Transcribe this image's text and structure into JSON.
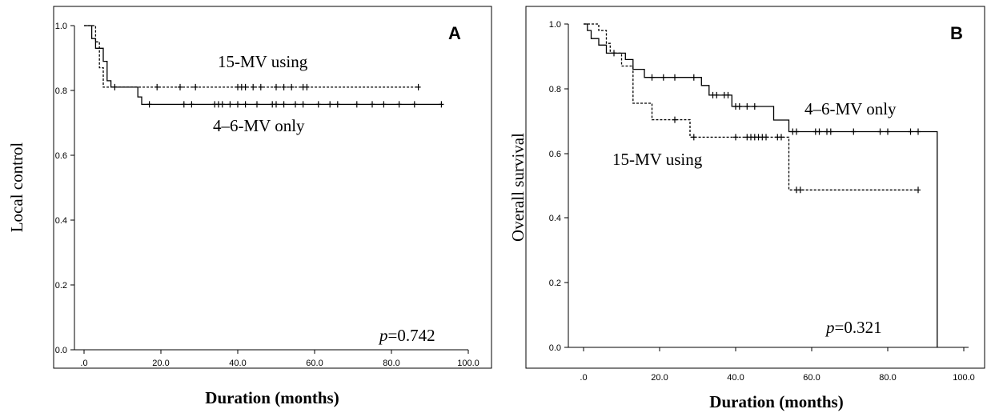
{
  "chart_data": [
    {
      "panel": "A",
      "type": "line",
      "xlabel": "Duration (months)",
      "ylabel": "Local control",
      "xlim": [
        0,
        100
      ],
      "ylim": [
        0,
        1.0
      ],
      "x_ticks": [
        ".0",
        "20.0",
        "40.0",
        "60.0",
        "80.0",
        "100.0"
      ],
      "y_ticks": [
        "0.0",
        "0.2",
        "0.4",
        "0.6",
        "0.8",
        "1.0"
      ],
      "annotation": {
        "p_symbol": "p",
        "p_value": "=0.742"
      },
      "series": [
        {
          "name": "15-MV using",
          "style": "dashed",
          "steps": [
            [
              0,
              1.0
            ],
            [
              3,
              1.0
            ],
            [
              3,
              0.95
            ],
            [
              4,
              0.95
            ],
            [
              4,
              0.87
            ],
            [
              5,
              0.87
            ],
            [
              5,
              0.81
            ],
            [
              87,
              0.81
            ]
          ],
          "censored": [
            [
              8,
              0.81
            ],
            [
              19,
              0.81
            ],
            [
              25,
              0.81
            ],
            [
              29,
              0.81
            ],
            [
              40,
              0.81
            ],
            [
              41,
              0.81
            ],
            [
              42,
              0.81
            ],
            [
              44,
              0.81
            ],
            [
              46,
              0.81
            ],
            [
              50,
              0.81
            ],
            [
              52,
              0.81
            ],
            [
              54,
              0.81
            ],
            [
              57,
              0.81
            ],
            [
              58,
              0.81
            ],
            [
              87,
              0.81
            ]
          ]
        },
        {
          "name": "4–6-MV only",
          "style": "solid",
          "steps": [
            [
              0,
              1.0
            ],
            [
              2,
              1.0
            ],
            [
              2,
              0.96
            ],
            [
              3,
              0.96
            ],
            [
              3,
              0.93
            ],
            [
              5,
              0.93
            ],
            [
              5,
              0.89
            ],
            [
              6,
              0.89
            ],
            [
              6,
              0.83
            ],
            [
              7,
              0.83
            ],
            [
              7,
              0.81
            ],
            [
              14,
              0.81
            ],
            [
              14,
              0.78
            ],
            [
              15,
              0.78
            ],
            [
              15,
              0.757
            ],
            [
              93,
              0.757
            ]
          ],
          "censored": [
            [
              17,
              0.757
            ],
            [
              26,
              0.757
            ],
            [
              28,
              0.757
            ],
            [
              34,
              0.757
            ],
            [
              35,
              0.757
            ],
            [
              36,
              0.757
            ],
            [
              38,
              0.757
            ],
            [
              40,
              0.757
            ],
            [
              42,
              0.757
            ],
            [
              45,
              0.757
            ],
            [
              49,
              0.757
            ],
            [
              50,
              0.757
            ],
            [
              52,
              0.757
            ],
            [
              55,
              0.757
            ],
            [
              57,
              0.757
            ],
            [
              61,
              0.757
            ],
            [
              64,
              0.757
            ],
            [
              66,
              0.757
            ],
            [
              71,
              0.757
            ],
            [
              75,
              0.757
            ],
            [
              78,
              0.757
            ],
            [
              82,
              0.757
            ],
            [
              86,
              0.757
            ],
            [
              93,
              0.757
            ]
          ]
        }
      ]
    },
    {
      "panel": "B",
      "type": "line",
      "xlabel": "Duration (months)",
      "ylabel": "Overall survival",
      "xlim": [
        0,
        100
      ],
      "ylim": [
        0,
        1.0
      ],
      "x_ticks": [
        ".0",
        "20.0",
        "40.0",
        "60.0",
        "80.0",
        "100.0"
      ],
      "y_ticks": [
        "0.0",
        "0.2",
        "0.4",
        "0.6",
        "0.8",
        "1.0"
      ],
      "annotation": {
        "p_symbol": "p",
        "p_value": "=0.321"
      },
      "series": [
        {
          "name": "15-MV using",
          "style": "dashed",
          "steps": [
            [
              0,
              1.0
            ],
            [
              4,
              1.0
            ],
            [
              4,
              0.98
            ],
            [
              6,
              0.98
            ],
            [
              6,
              0.94
            ],
            [
              7,
              0.94
            ],
            [
              7,
              0.91
            ],
            [
              10,
              0.91
            ],
            [
              10,
              0.87
            ],
            [
              13,
              0.87
            ],
            [
              13,
              0.755
            ],
            [
              18,
              0.755
            ],
            [
              18,
              0.704
            ],
            [
              28,
              0.704
            ],
            [
              28,
              0.65
            ],
            [
              54,
              0.65
            ],
            [
              54,
              0.487
            ],
            [
              88,
              0.487
            ]
          ],
          "censored": [
            [
              8,
              0.91
            ],
            [
              24,
              0.704
            ],
            [
              29,
              0.65
            ],
            [
              40,
              0.65
            ],
            [
              43,
              0.65
            ],
            [
              44,
              0.65
            ],
            [
              45,
              0.65
            ],
            [
              46,
              0.65
            ],
            [
              47,
              0.65
            ],
            [
              48,
              0.65
            ],
            [
              51,
              0.65
            ],
            [
              52,
              0.65
            ],
            [
              56,
              0.487
            ],
            [
              57,
              0.487
            ],
            [
              88,
              0.487
            ]
          ]
        },
        {
          "name": "4–6-MV only",
          "style": "solid",
          "steps": [
            [
              0,
              1.0
            ],
            [
              1,
              1.0
            ],
            [
              1,
              0.98
            ],
            [
              2,
              0.98
            ],
            [
              2,
              0.955
            ],
            [
              4,
              0.955
            ],
            [
              4,
              0.935
            ],
            [
              6,
              0.935
            ],
            [
              6,
              0.91
            ],
            [
              11,
              0.91
            ],
            [
              11,
              0.89
            ],
            [
              13,
              0.89
            ],
            [
              13,
              0.86
            ],
            [
              16,
              0.86
            ],
            [
              16,
              0.835
            ],
            [
              31,
              0.835
            ],
            [
              31,
              0.81
            ],
            [
              33,
              0.81
            ],
            [
              33,
              0.78
            ],
            [
              39,
              0.78
            ],
            [
              39,
              0.745
            ],
            [
              50,
              0.745
            ],
            [
              50,
              0.703
            ],
            [
              54,
              0.703
            ],
            [
              54,
              0.667
            ],
            [
              93,
              0.667
            ],
            [
              93,
              0.0
            ]
          ],
          "censored": [
            [
              18,
              0.835
            ],
            [
              21,
              0.835
            ],
            [
              24,
              0.835
            ],
            [
              29,
              0.835
            ],
            [
              34,
              0.78
            ],
            [
              35,
              0.78
            ],
            [
              37,
              0.78
            ],
            [
              38,
              0.78
            ],
            [
              40,
              0.745
            ],
            [
              41,
              0.745
            ],
            [
              43,
              0.745
            ],
            [
              45,
              0.745
            ],
            [
              55,
              0.667
            ],
            [
              56,
              0.667
            ],
            [
              61,
              0.667
            ],
            [
              62,
              0.667
            ],
            [
              64,
              0.667
            ],
            [
              65,
              0.667
            ],
            [
              71,
              0.667
            ],
            [
              78,
              0.667
            ],
            [
              80,
              0.667
            ],
            [
              86,
              0.667
            ],
            [
              88,
              0.667
            ]
          ]
        }
      ]
    }
  ],
  "panels": [
    {
      "letter": "A",
      "xlabel": "Duration (months)",
      "ylabel": "Local control",
      "label_15mv": "15-MV using",
      "label_46mv": "4–6-MV only",
      "p_symbol": "p",
      "p_value": "=0.742",
      "x_ticks": [
        ".0",
        "20.0",
        "40.0",
        "60.0",
        "80.0",
        "100.0"
      ],
      "y_ticks": [
        "0.0",
        "0.2",
        "0.4",
        "0.6",
        "0.8",
        "1.0"
      ]
    },
    {
      "letter": "B",
      "xlabel": "Duration (months)",
      "ylabel": "Overall survival",
      "label_15mv": "15-MV using",
      "label_46mv": "4–6-MV only",
      "p_symbol": "p",
      "p_value": "=0.321",
      "x_ticks": [
        ".0",
        "20.0",
        "40.0",
        "60.0",
        "80.0",
        "100.0"
      ],
      "y_ticks": [
        "0.0",
        "0.2",
        "0.4",
        "0.6",
        "0.8",
        "1.0"
      ]
    }
  ]
}
